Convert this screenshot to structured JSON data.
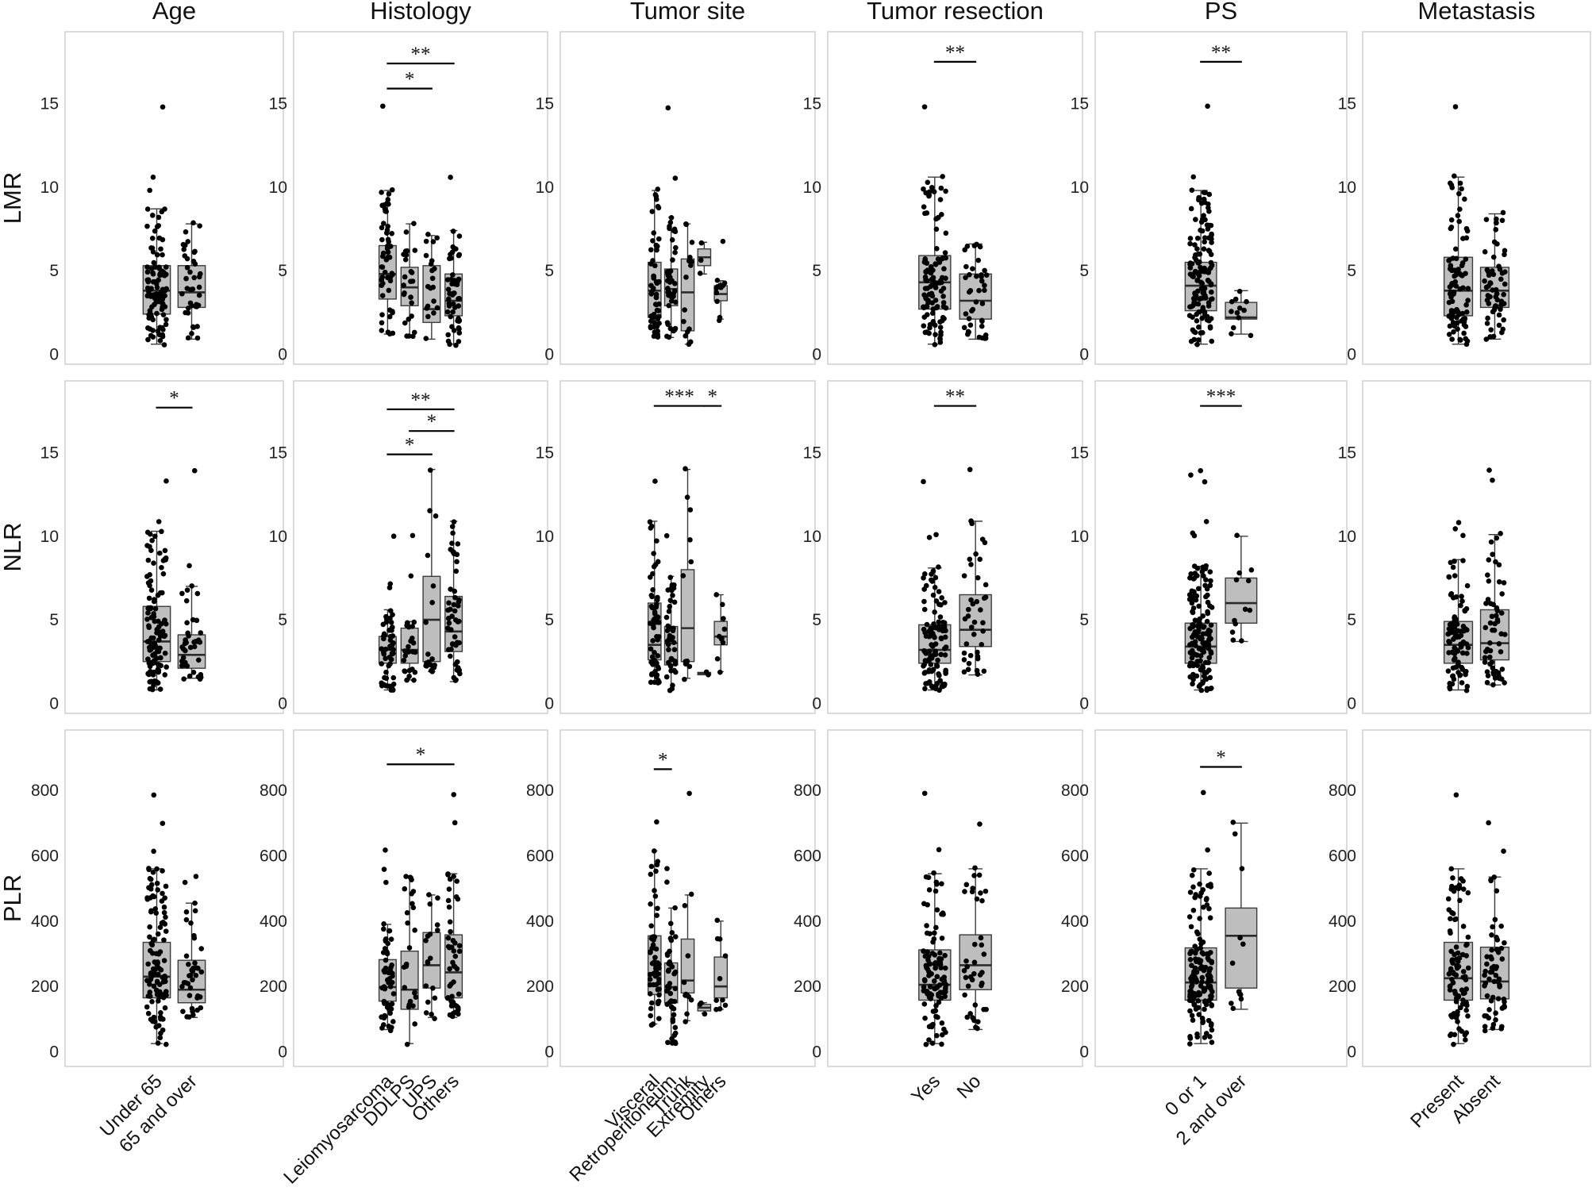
{
  "chart_data": {
    "type": "box",
    "column_titles": [
      "Age",
      "Histology",
      "Tumor site",
      "Tumor resection",
      "PS",
      "Metastasis"
    ],
    "row_titles": [
      "LMR",
      "NLR",
      "PLR"
    ],
    "row_axes": [
      {
        "ticks": [
          0,
          5,
          10,
          15
        ],
        "ylim": [
          -0.6,
          19.3
        ]
      },
      {
        "ticks": [
          0,
          5,
          10,
          15
        ],
        "ylim": [
          -0.6,
          19.3
        ]
      },
      {
        "ticks": [
          0,
          200,
          400,
          600,
          800
        ],
        "ylim": [
          -45,
          985
        ]
      }
    ],
    "columns": [
      {
        "categories": [
          "Under 65",
          "65 and over"
        ]
      },
      {
        "categories": [
          "Leiomyosarcoma",
          "DDLPS",
          "UPS",
          "Others"
        ]
      },
      {
        "categories": [
          "Visceral",
          "Retroperitoneum",
          "Trunk",
          "Extremity",
          "Others"
        ]
      },
      {
        "categories": [
          "Yes",
          "No"
        ]
      },
      {
        "categories": [
          "0 or 1",
          "2 and over"
        ]
      },
      {
        "categories": [
          "Present",
          "Absent"
        ]
      }
    ],
    "panels": [
      [
        {
          "boxes": [
            {
              "q1": 2.4,
              "median": 3.8,
              "q3": 5.3,
              "wlo": 0.6,
              "whi": 8.7,
              "n": 110,
              "outliers": [
                9.8,
                10.6,
                14.8
              ]
            },
            {
              "q1": 2.8,
              "median": 3.7,
              "q3": 5.3,
              "wlo": 0.9,
              "whi": 7.8,
              "n": 40,
              "outliers": []
            }
          ],
          "sig": []
        },
        {
          "boxes": [
            {
              "q1": 3.3,
              "median": 4.8,
              "q3": 6.5,
              "wlo": 1.2,
              "whi": 9.8,
              "n": 55,
              "outliers": [
                14.8
              ]
            },
            {
              "q1": 2.9,
              "median": 4.0,
              "q3": 5.2,
              "wlo": 1.0,
              "whi": 7.8,
              "n": 25,
              "outliers": []
            },
            {
              "q1": 1.9,
              "median": 2.7,
              "q3": 5.3,
              "wlo": 0.9,
              "whi": 7.1,
              "n": 20,
              "outliers": []
            },
            {
              "q1": 2.3,
              "median": 3.2,
              "q3": 4.8,
              "wlo": 0.6,
              "whi": 7.4,
              "n": 50,
              "outliers": [
                10.6
              ]
            }
          ],
          "sig": [
            {
              "from": 0,
              "to": 2,
              "y": 15.9,
              "label": "*"
            },
            {
              "from": 0,
              "to": 3,
              "y": 17.4,
              "label": "**"
            }
          ]
        },
        {
          "boxes": [
            {
              "q1": 2.2,
              "median": 3.8,
              "q3": 5.5,
              "wlo": 1.1,
              "whi": 9.8,
              "n": 60,
              "outliers": []
            },
            {
              "q1": 2.9,
              "median": 3.9,
              "q3": 5.1,
              "wlo": 1.0,
              "whi": 8.2,
              "n": 45,
              "outliers": [
                10.6,
                14.8
              ]
            },
            {
              "q1": 1.4,
              "median": 3.7,
              "q3": 5.7,
              "wlo": 0.6,
              "whi": 7.8,
              "n": 15,
              "outliers": []
            },
            {
              "q1": 5.3,
              "median": 5.8,
              "q3": 6.3,
              "wlo": 4.8,
              "whi": 6.7,
              "n": 3,
              "outliers": []
            },
            {
              "q1": 3.2,
              "median": 3.6,
              "q3": 4.1,
              "wlo": 2.1,
              "whi": 4.4,
              "n": 12,
              "outliers": [
                6.7
              ]
            }
          ],
          "sig": []
        },
        {
          "boxes": [
            {
              "q1": 2.7,
              "median": 4.3,
              "q3": 5.9,
              "wlo": 0.6,
              "whi": 10.6,
              "n": 110,
              "outliers": [
                14.8
              ]
            },
            {
              "q1": 2.1,
              "median": 3.2,
              "q3": 4.8,
              "wlo": 0.9,
              "whi": 6.6,
              "n": 40,
              "outliers": []
            }
          ],
          "sig": [
            {
              "from": 0,
              "to": 1,
              "y": 17.5,
              "label": "**"
            }
          ]
        },
        {
          "boxes": [
            {
              "q1": 2.6,
              "median": 4.1,
              "q3": 5.5,
              "wlo": 0.6,
              "whi": 9.8,
              "n": 140,
              "outliers": [
                10.6,
                14.8
              ]
            },
            {
              "q1": 2.1,
              "median": 2.2,
              "q3": 3.1,
              "wlo": 1.2,
              "whi": 3.8,
              "n": 12,
              "outliers": []
            }
          ],
          "sig": [
            {
              "from": 0,
              "to": 1,
              "y": 17.5,
              "label": "**"
            }
          ]
        },
        {
          "boxes": [
            {
              "q1": 2.3,
              "median": 3.8,
              "q3": 5.8,
              "wlo": 0.6,
              "whi": 10.6,
              "n": 95,
              "outliers": [
                14.8
              ]
            },
            {
              "q1": 2.8,
              "median": 3.8,
              "q3": 5.2,
              "wlo": 0.9,
              "whi": 8.4,
              "n": 60,
              "outliers": []
            }
          ],
          "sig": []
        }
      ],
      [
        {
          "boxes": [
            {
              "q1": 2.5,
              "median": 3.7,
              "q3": 5.8,
              "wlo": 0.8,
              "whi": 10.3,
              "n": 110,
              "outliers": [
                10.9,
                13.3
              ]
            },
            {
              "q1": 2.1,
              "median": 2.9,
              "q3": 4.1,
              "wlo": 1.5,
              "whi": 7.0,
              "n": 40,
              "outliers": [
                8.2,
                14.0
              ]
            }
          ],
          "sig": [
            {
              "from": 0,
              "to": 1,
              "y": 17.7,
              "label": "*"
            }
          ]
        },
        {
          "boxes": [
            {
              "q1": 2.4,
              "median": 3.2,
              "q3": 4.0,
              "wlo": 0.8,
              "whi": 5.6,
              "n": 55,
              "outliers": [
                7.0,
                7.1,
                10.0
              ]
            },
            {
              "q1": 2.4,
              "median": 3.2,
              "q3": 4.5,
              "wlo": 1.4,
              "whi": 4.9,
              "n": 25,
              "outliers": [
                7.7,
                10.0
              ]
            },
            {
              "q1": 2.5,
              "median": 5.0,
              "q3": 7.6,
              "wlo": 1.9,
              "whi": 14.0,
              "n": 18,
              "outliers": []
            },
            {
              "q1": 3.1,
              "median": 4.3,
              "q3": 6.4,
              "wlo": 1.3,
              "whi": 10.9,
              "n": 50,
              "outliers": []
            }
          ],
          "sig": [
            {
              "from": 0,
              "to": 2,
              "y": 14.9,
              "label": "*"
            },
            {
              "from": 1,
              "to": 3,
              "y": 16.3,
              "label": "*"
            },
            {
              "from": 0,
              "to": 3,
              "y": 17.6,
              "label": "**"
            }
          ]
        },
        {
          "boxes": [
            {
              "q1": 2.6,
              "median": 3.5,
              "q3": 6.0,
              "wlo": 1.2,
              "whi": 10.9,
              "n": 60,
              "outliers": [
                13.3
              ]
            },
            {
              "q1": 2.3,
              "median": 3.6,
              "q3": 4.6,
              "wlo": 0.8,
              "whi": 7.6,
              "n": 45,
              "outliers": [
                10.0
              ]
            },
            {
              "q1": 2.5,
              "median": 4.5,
              "q3": 8.0,
              "wlo": 1.5,
              "whi": 14.0,
              "n": 12,
              "outliers": []
            },
            {
              "q1": 1.75,
              "median": 1.8,
              "q3": 1.85,
              "wlo": 1.75,
              "whi": 1.85,
              "n": 1,
              "outliers": []
            },
            {
              "q1": 3.5,
              "median": 4.0,
              "q3": 4.9,
              "wlo": 1.9,
              "whi": 6.5,
              "n": 10,
              "outliers": []
            }
          ],
          "sig": [
            {
              "from": 0,
              "to": 3,
              "y": 17.8,
              "label": "***"
            },
            {
              "from": 3,
              "to": 4,
              "y": 17.8,
              "label": "*"
            }
          ]
        },
        {
          "boxes": [
            {
              "q1": 2.4,
              "median": 3.2,
              "q3": 4.7,
              "wlo": 0.8,
              "whi": 8.1,
              "n": 110,
              "outliers": [
                10.0,
                10.1,
                13.3
              ]
            },
            {
              "q1": 3.4,
              "median": 4.4,
              "q3": 6.5,
              "wlo": 1.7,
              "whi": 10.9,
              "n": 40,
              "outliers": [
                14.0
              ]
            }
          ],
          "sig": [
            {
              "from": 0,
              "to": 1,
              "y": 17.8,
              "label": "**"
            }
          ]
        },
        {
          "boxes": [
            {
              "q1": 2.4,
              "median": 3.4,
              "q3": 4.8,
              "wlo": 0.8,
              "whi": 8.2,
              "n": 140,
              "outliers": [
                10.0,
                10.2,
                10.9,
                13.3,
                13.6,
                14.0
              ]
            },
            {
              "q1": 4.8,
              "median": 6.0,
              "q3": 7.5,
              "wlo": 3.7,
              "whi": 10.0,
              "n": 12,
              "outliers": []
            }
          ],
          "sig": [
            {
              "from": 0,
              "to": 1,
              "y": 17.8,
              "label": "***"
            }
          ]
        },
        {
          "boxes": [
            {
              "q1": 2.4,
              "median": 3.5,
              "q3": 4.9,
              "wlo": 0.8,
              "whi": 8.6,
              "n": 95,
              "outliers": [
                10.0,
                10.5,
                10.9
              ]
            },
            {
              "q1": 2.6,
              "median": 3.6,
              "q3": 5.6,
              "wlo": 1.1,
              "whi": 10.1,
              "n": 60,
              "outliers": [
                13.3,
                14.0
              ]
            }
          ],
          "sig": []
        }
      ],
      [
        {
          "boxes": [
            {
              "q1": 165,
              "median": 230,
              "q3": 335,
              "wlo": 25,
              "whi": 560,
              "n": 110,
              "outliers": [
                615,
                700,
                790
              ]
            },
            {
              "q1": 150,
              "median": 190,
              "q3": 280,
              "wlo": 105,
              "whi": 455,
              "n": 40,
              "outliers": [
                520,
                535
              ]
            }
          ],
          "sig": []
        },
        {
          "boxes": [
            {
              "q1": 155,
              "median": 198,
              "q3": 282,
              "wlo": 68,
              "whi": 390,
              "n": 55,
              "outliers": [
                520,
                560,
                615
              ]
            },
            {
              "q1": 130,
              "median": 190,
              "q3": 308,
              "wlo": 25,
              "whi": 535,
              "n": 25,
              "outliers": []
            },
            {
              "q1": 195,
              "median": 265,
              "q3": 365,
              "wlo": 105,
              "whi": 480,
              "n": 18,
              "outliers": []
            },
            {
              "q1": 165,
              "median": 243,
              "q3": 358,
              "wlo": 105,
              "whi": 545,
              "n": 50,
              "outliers": [
                700,
                790
              ]
            }
          ],
          "sig": [
            {
              "from": 0,
              "to": 3,
              "y": 880,
              "label": "*"
            }
          ]
        },
        {
          "boxes": [
            {
              "q1": 175,
              "median": 240,
              "q3": 355,
              "wlo": 85,
              "whi": 615,
              "n": 60,
              "outliers": [
                700
              ]
            },
            {
              "q1": 150,
              "median": 198,
              "q3": 272,
              "wlo": 25,
              "whi": 440,
              "n": 45,
              "outliers": [
                520,
                560
              ]
            },
            {
              "q1": 180,
              "median": 218,
              "q3": 345,
              "wlo": 95,
              "whi": 480,
              "n": 12,
              "outliers": [
                790
              ]
            },
            {
              "q1": 125,
              "median": 135,
              "q3": 145,
              "wlo": 118,
              "whi": 150,
              "n": 3,
              "outliers": []
            },
            {
              "q1": 165,
              "median": 200,
              "q3": 290,
              "wlo": 130,
              "whi": 400,
              "n": 10,
              "outliers": []
            }
          ],
          "sig": [
            {
              "from": 0,
              "to": 1,
              "y": 865,
              "label": "*"
            }
          ]
        },
        {
          "boxes": [
            {
              "q1": 158,
              "median": 205,
              "q3": 312,
              "wlo": 25,
              "whi": 545,
              "n": 110,
              "outliers": [
                615,
                790
              ]
            },
            {
              "q1": 190,
              "median": 265,
              "q3": 358,
              "wlo": 68,
              "whi": 560,
              "n": 40,
              "outliers": [
                700
              ]
            }
          ],
          "sig": []
        },
        {
          "boxes": [
            {
              "q1": 158,
              "median": 212,
              "q3": 318,
              "wlo": 25,
              "whi": 560,
              "n": 140,
              "outliers": [
                615,
                790
              ]
            },
            {
              "q1": 195,
              "median": 355,
              "q3": 440,
              "wlo": 130,
              "whi": 700,
              "n": 12,
              "outliers": []
            }
          ],
          "sig": [
            {
              "from": 0,
              "to": 1,
              "y": 872,
              "label": "*"
            }
          ]
        },
        {
          "boxes": [
            {
              "q1": 158,
              "median": 225,
              "q3": 335,
              "wlo": 25,
              "whi": 560,
              "n": 95,
              "outliers": [
                790
              ]
            },
            {
              "q1": 162,
              "median": 215,
              "q3": 320,
              "wlo": 68,
              "whi": 535,
              "n": 60,
              "outliers": [
                615,
                700
              ]
            }
          ],
          "sig": []
        }
      ]
    ],
    "colors": {
      "box_fill": "#bebebe",
      "box_stroke": "#3c3c3c",
      "point": "#000000",
      "panel_border": "#cfcfcf"
    }
  }
}
